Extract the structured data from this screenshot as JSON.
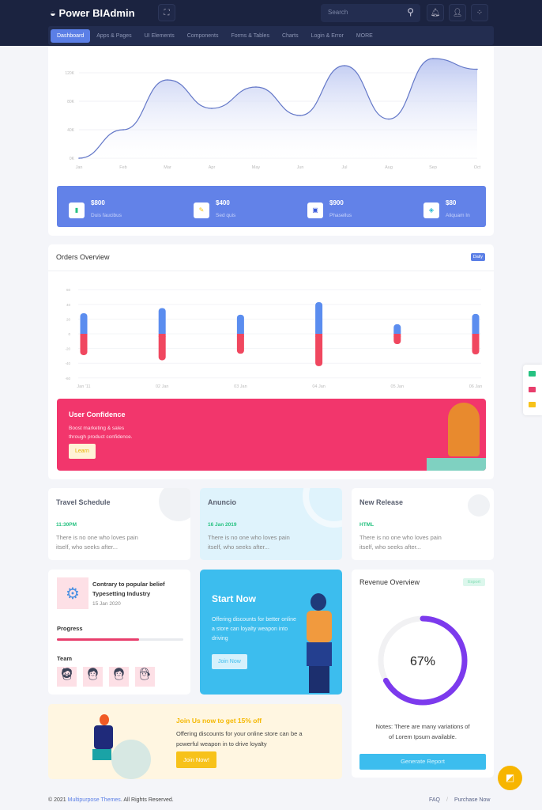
{
  "header": {
    "brand": "Power BIAdmin",
    "search_placeholder": "Search"
  },
  "nav": [
    "Dashboard",
    "Apps & Pages",
    "UI Elements",
    "Components",
    "Forms & Tables",
    "Charts",
    "Login & Error",
    "MORE"
  ],
  "area_chart": {
    "chart_data": {
      "type": "area",
      "categories": [
        "Jan",
        "Feb",
        "Mar",
        "Apr",
        "May",
        "Jun",
        "Jul",
        "Aug",
        "Sep",
        "Oct"
      ],
      "values": [
        0,
        40,
        110,
        70,
        100,
        60,
        130,
        55,
        140,
        125
      ],
      "yticks": [
        "0K",
        "40K",
        "80K",
        "120K"
      ],
      "ylim": [
        0,
        140
      ],
      "color": "#6478c8"
    }
  },
  "stats": [
    {
      "value": "$800",
      "label": "Duis faucibus",
      "icon": "battery-icon"
    },
    {
      "value": "$400",
      "label": "Sed quis",
      "icon": "pencil-icon"
    },
    {
      "value": "$900",
      "label": "Phasellus",
      "icon": "image-icon"
    },
    {
      "value": "$80",
      "label": "Aliquam In",
      "icon": "drop-icon"
    }
  ],
  "orders": {
    "title": "Orders Overview",
    "badge": "Daily",
    "chart_data": {
      "type": "bar",
      "categories": [
        "Jan '11",
        "02 Jan",
        "03 Jan",
        "04 Jan",
        "05 Jan",
        "06 Jan"
      ],
      "series": [
        {
          "values": [
            28,
            35,
            26,
            43,
            13,
            27
          ],
          "color": "#5b8def"
        },
        {
          "values": [
            -29,
            -36,
            -27,
            -44,
            -14,
            -28
          ],
          "color": "#f0475f"
        }
      ],
      "yticks": [
        "60",
        "40",
        "20",
        "0",
        "-20",
        "-40",
        "-60"
      ],
      "ylim": [
        -60,
        60
      ]
    }
  },
  "confidence": {
    "title": "User Confidence",
    "text1": "Boost marketing & sales",
    "text2": "through product confidence.",
    "button": "Learn"
  },
  "info_cards": [
    {
      "title": "Travel Schedule",
      "tag": "11:30PM",
      "text1": "There is no one who loves pain",
      "text2": "itself, who seeks after..."
    },
    {
      "title": "Anuncio",
      "tag": "16 Jan 2019",
      "text1": "There is no one who loves pain",
      "text2": "itself, who seeks after..."
    },
    {
      "title": "New Release",
      "tag": "HTML",
      "text1": "There is no one who loves pain",
      "text2": "itself, who seeks after..."
    }
  ],
  "project": {
    "title1": "Contrary to popular belief",
    "title2": "Typesetting Industry",
    "date": "15 Jan 2020",
    "progress_label": "Progress",
    "progress": 65,
    "team_label": "Team"
  },
  "start": {
    "title": "Start Now",
    "text": "Offering discounts for better online a store can loyalty weapon into driving",
    "button": "Join Now"
  },
  "revenue": {
    "title": "Revenue Overview",
    "badge": "Export",
    "percent": 67,
    "percent_label": "67%",
    "note1": "Notes: There are many variations of",
    "note2": "of Lorem Ipsum available.",
    "button": "Generate Report",
    "color": "#7c3aed"
  },
  "promo": {
    "title": "Join Us now to get 15% off",
    "text": "Offering discounts for your online store can be a powerful weapon in to drive loyalty",
    "button": "Join Now!"
  },
  "footer": {
    "copy_prefix": "© 2021 ",
    "company": "Multipurpose Themes",
    "copy_suffix": ". All Rights Reserved.",
    "faq": "FAQ",
    "sep": "/",
    "purchase": "Purchase Now"
  }
}
